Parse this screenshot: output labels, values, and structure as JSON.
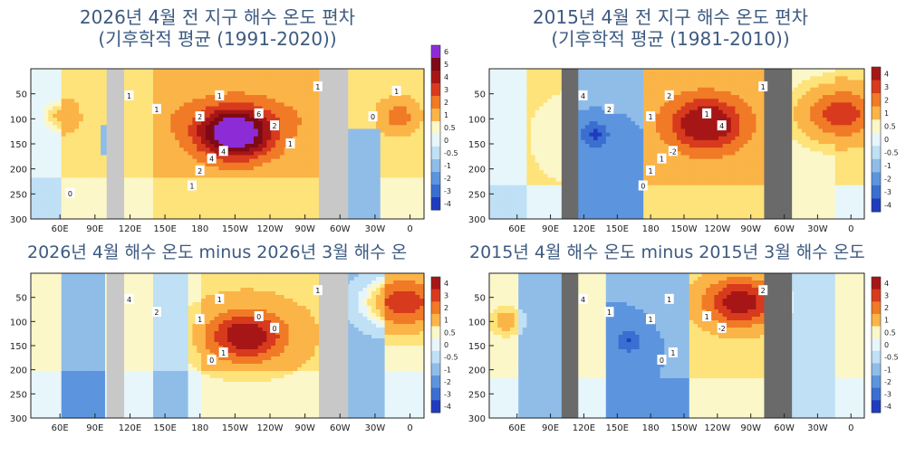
{
  "colors": {
    "title": "#3d5a80",
    "land": "#c8c8c8",
    "land_dark": "#6a6a6a",
    "scale": [
      "#1f3cbf",
      "#3a6fd1",
      "#5c95de",
      "#8fbde8",
      "#bfe0f5",
      "#e7f6fb",
      "#fcf7c8",
      "#fde37a",
      "#fbb447",
      "#f07a26",
      "#d73a1d",
      "#a71616",
      "#7d0a16",
      "#8d2cd6"
    ]
  },
  "chart_data": [
    {
      "type": "heatmap",
      "title": "2026년 4월 전 지구 해수 온도 편차",
      "subtitle": "(기후학적 평균 (1991-2020))",
      "x_ticks": [
        "60E",
        "90E",
        "120E",
        "150E",
        "180",
        "150W",
        "120W",
        "90W",
        "60W",
        "30W",
        "0"
      ],
      "y_ticks": [
        "50",
        "100",
        "150",
        "200",
        "250",
        "300"
      ],
      "ylim": [
        300,
        0
      ],
      "colorbar_ticks": [
        "6",
        "5",
        "4",
        "3",
        "2",
        "1",
        "0.5",
        "0",
        "-0.5",
        "-1",
        "-2",
        "-3",
        "-4"
      ],
      "contour_labels": [
        "1",
        "1",
        "1",
        "1",
        "2",
        "2",
        "6",
        "4",
        "4",
        "2",
        "1",
        "1",
        "0",
        "1",
        "0"
      ],
      "land_shading": "light",
      "anomaly_centers": [
        {
          "lon": "150W",
          "depth": 130,
          "value": 6
        },
        {
          "lon": "60E",
          "depth": 95,
          "value": 1
        },
        {
          "lon": "10W",
          "depth": 95,
          "value": 2
        }
      ]
    },
    {
      "type": "heatmap",
      "title": "2015년 4월 전 지구 해수 온도 편차",
      "subtitle": "(기후학적 평균 (1981-2010))",
      "x_ticks": [
        "60E",
        "90E",
        "120E",
        "150E",
        "180",
        "150W",
        "120W",
        "90W",
        "60W",
        "30W",
        "0"
      ],
      "y_ticks": [
        "50",
        "100",
        "150",
        "200",
        "250",
        "300"
      ],
      "ylim": [
        300,
        0
      ],
      "colorbar_ticks": [
        "4",
        "3",
        "2",
        "1",
        "0.5",
        "0",
        "-0.5",
        "-1",
        "-2",
        "-3",
        "-4"
      ],
      "contour_labels": [
        "4",
        "2",
        "2",
        "1",
        "1",
        "4",
        "1",
        "-2",
        "1",
        "1",
        "0"
      ],
      "land_shading": "dark",
      "anomaly_centers": [
        {
          "lon": "130W",
          "depth": 110,
          "value": 4
        },
        {
          "lon": "130E",
          "depth": 130,
          "value": -2
        },
        {
          "lon": "10W",
          "depth": 90,
          "value": 3
        }
      ]
    },
    {
      "type": "heatmap",
      "title": "2026년 4월 해수 온도 minus 2026년 3월 해수 온",
      "x_ticks": [
        "60E",
        "90E",
        "120E",
        "150E",
        "180",
        "150W",
        "120W",
        "90W",
        "60W",
        "30W",
        "0"
      ],
      "y_ticks": [
        "50",
        "100",
        "150",
        "200",
        "250",
        "300"
      ],
      "ylim": [
        300,
        0
      ],
      "colorbar_ticks": [
        "4",
        "3",
        "2",
        "1",
        "0.5",
        "0",
        "-0.5",
        "-1",
        "-2",
        "-3",
        "-4"
      ],
      "contour_labels": [
        "4",
        "2",
        "1",
        "1",
        "1",
        "0",
        "0",
        "1",
        "0"
      ],
      "land_shading": "light",
      "anomaly_centers": [
        {
          "lon": "140W",
          "depth": 130,
          "value": 4
        },
        {
          "lon": "5W",
          "depth": 60,
          "value": 3
        }
      ]
    },
    {
      "type": "heatmap",
      "title": "2015년 4월 해수 온도 minus 2015년 3월 해수 온도",
      "x_ticks": [
        "60E",
        "90E",
        "120E",
        "150E",
        "180",
        "150W",
        "120W",
        "90W",
        "60W",
        "30W",
        "0"
      ],
      "y_ticks": [
        "50",
        "100",
        "150",
        "200",
        "250",
        "300"
      ],
      "ylim": [
        300,
        0
      ],
      "colorbar_ticks": [
        "4",
        "3",
        "2",
        "1",
        "0.5",
        "0",
        "-0.5",
        "-1",
        "-2",
        "-3",
        "-4"
      ],
      "contour_labels": [
        "4",
        "1",
        "1",
        "2",
        "1",
        "-2",
        "1",
        "1",
        "0"
      ],
      "land_shading": "dark",
      "anomaly_centers": [
        {
          "lon": "100W",
          "depth": 60,
          "value": 4
        },
        {
          "lon": "160E",
          "depth": 140,
          "value": -2
        },
        {
          "lon": "50E",
          "depth": 100,
          "value": 1
        }
      ]
    }
  ]
}
